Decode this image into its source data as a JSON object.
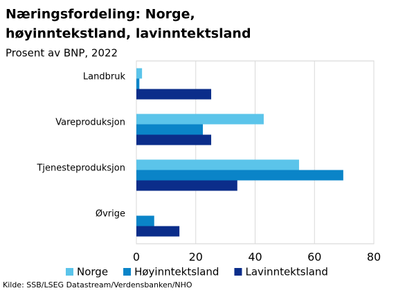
{
  "chart_data": {
    "type": "hbar",
    "title": [
      "Næringsfordeling: Norge,",
      "høyinntekstland, lavinntektsland"
    ],
    "subtitle": "Prosent av BNP, 2022",
    "source": "Kilde: SSB/LSEG  Datastream/Verdensbanken/NHO",
    "categories": [
      "Landbruk",
      "Vareproduksjon",
      "Tjenesteproduksjon",
      "Øvrige"
    ],
    "series": [
      {
        "name": "Norge",
        "color": "#5bc4ea",
        "values": [
          1.9,
          42.9,
          54.8,
          0
        ]
      },
      {
        "name": "Høyinntektsland",
        "color": "#0a84c8",
        "values": [
          1,
          22.4,
          69.7,
          6
        ]
      },
      {
        "name": "Lavinntektsland",
        "color": "#0b2d8a",
        "values": [
          25.2,
          25.2,
          34,
          14.5
        ]
      }
    ],
    "xlim": [
      0,
      80
    ],
    "xticks": [
      0,
      20,
      40,
      60,
      80
    ],
    "grid": true
  }
}
